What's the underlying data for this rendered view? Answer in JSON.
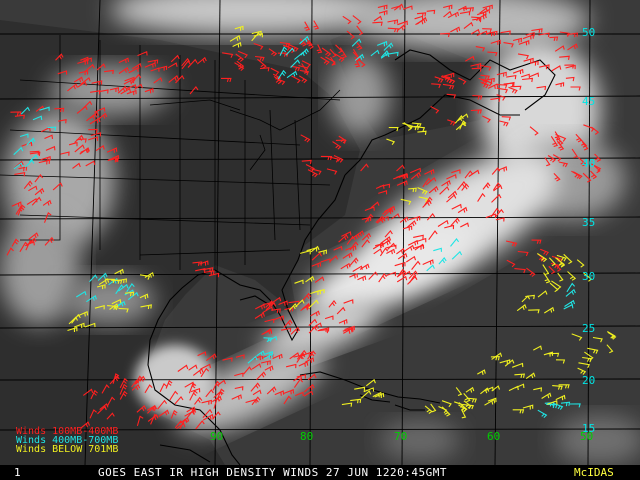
{
  "footer": {
    "frame": "1",
    "title": "GOES EAST IR HIGH DENSITY WINDS 27 JUN 1220:45GMT",
    "brand": "McIDAS"
  },
  "legend": {
    "red": "Winds 100MB-400MB",
    "cyan": "Winds 400MB-700MB",
    "yellow": "Winds BELOW 701MB"
  },
  "latitude_labels": [
    "50",
    "45",
    "40",
    "35",
    "30",
    "25",
    "20",
    "15"
  ],
  "longitude_labels": [
    "90",
    "80",
    "70",
    "60",
    "50"
  ],
  "colors": {
    "high_winds": "#ff2020",
    "mid_winds": "#20e5e5",
    "low_winds": "#f0f020",
    "grid": "#000000",
    "lat_labels": "#00e5e5",
    "lon_labels": "#00d000"
  }
}
